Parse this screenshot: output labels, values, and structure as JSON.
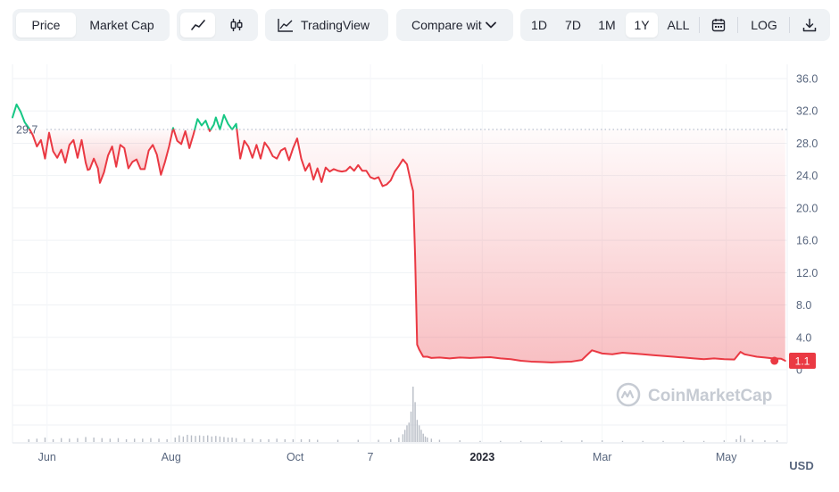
{
  "toolbar": {
    "metric_tabs": [
      {
        "label": "Price",
        "active": true
      },
      {
        "label": "Market Cap",
        "active": false
      }
    ],
    "chart_type_icons": [
      "line-chart-icon",
      "candlestick-icon"
    ],
    "tradingview_label": "TradingView",
    "compare_label": "Compare wit",
    "ranges": [
      {
        "label": "1D",
        "active": false
      },
      {
        "label": "7D",
        "active": false
      },
      {
        "label": "1M",
        "active": false
      },
      {
        "label": "1Y",
        "active": true
      },
      {
        "label": "ALL",
        "active": false
      }
    ],
    "calendar_icon": "calendar-icon",
    "log_label": "LOG",
    "download_icon": "download-icon"
  },
  "watermark": "CoinMarketCap",
  "currency_label": "USD",
  "colors": {
    "up": "#16c784",
    "down": "#ea3943",
    "grid": "#eff2f5",
    "axis_text": "#58667e",
    "badge_bg": "#ea3943"
  },
  "chart_data": {
    "type": "line",
    "reference_value": 29.7,
    "reference_label": "29.7",
    "last_value": 1.1,
    "last_label": "1.1",
    "ylim": [
      0,
      36
    ],
    "y_ticks": [
      {
        "value": 36,
        "label": "36.0"
      },
      {
        "value": 32,
        "label": "32.0"
      },
      {
        "value": 28,
        "label": "28.0"
      },
      {
        "value": 24,
        "label": "24.0"
      },
      {
        "value": 20,
        "label": "20.0"
      },
      {
        "value": 16,
        "label": "16.0"
      },
      {
        "value": 12,
        "label": "12.0"
      },
      {
        "value": 8,
        "label": "8.0"
      },
      {
        "value": 4,
        "label": "4.0"
      },
      {
        "value": 0,
        "label": "0"
      }
    ],
    "x_ticks": [
      {
        "day": 17,
        "label": "Jun",
        "bold": false
      },
      {
        "day": 78,
        "label": "Aug",
        "bold": false
      },
      {
        "day": 139,
        "label": "Oct",
        "bold": false
      },
      {
        "day": 176,
        "label": "7",
        "bold": false
      },
      {
        "day": 231,
        "label": "2023",
        "bold": true
      },
      {
        "day": 290,
        "label": "Mar",
        "bold": false
      },
      {
        "day": 351,
        "label": "May",
        "bold": false
      }
    ],
    "price_series": [
      [
        0,
        31.2
      ],
      [
        2,
        32.8
      ],
      [
        4,
        31.9
      ],
      [
        6,
        30.6
      ],
      [
        8,
        29.9
      ],
      [
        10,
        29.0
      ],
      [
        12,
        27.6
      ],
      [
        14,
        28.4
      ],
      [
        16,
        26.1
      ],
      [
        18,
        29.3
      ],
      [
        20,
        27.0
      ],
      [
        22,
        26.2
      ],
      [
        24,
        27.2
      ],
      [
        26,
        25.6
      ],
      [
        28,
        27.8
      ],
      [
        30,
        28.4
      ],
      [
        32,
        26.2
      ],
      [
        34,
        28.4
      ],
      [
        36,
        25.6
      ],
      [
        37,
        24.7
      ],
      [
        38,
        24.8
      ],
      [
        40,
        26.1
      ],
      [
        42,
        24.9
      ],
      [
        43,
        23.1
      ],
      [
        45,
        24.4
      ],
      [
        47,
        26.5
      ],
      [
        49,
        27.6
      ],
      [
        51,
        25.1
      ],
      [
        53,
        27.8
      ],
      [
        55,
        27.4
      ],
      [
        57,
        24.9
      ],
      [
        59,
        25.7
      ],
      [
        61,
        26.0
      ],
      [
        63,
        24.8
      ],
      [
        65,
        24.8
      ],
      [
        67,
        27.1
      ],
      [
        69,
        27.8
      ],
      [
        71,
        26.6
      ],
      [
        73,
        24.1
      ],
      [
        75,
        25.7
      ],
      [
        77,
        27.6
      ],
      [
        79,
        29.9
      ],
      [
        81,
        28.3
      ],
      [
        83,
        27.9
      ],
      [
        85,
        29.5
      ],
      [
        87,
        27.4
      ],
      [
        89,
        29.1
      ],
      [
        91,
        31.0
      ],
      [
        93,
        30.2
      ],
      [
        95,
        30.8
      ],
      [
        97,
        29.5
      ],
      [
        99,
        30.3
      ],
      [
        100,
        31.2
      ],
      [
        102,
        29.7
      ],
      [
        104,
        31.5
      ],
      [
        106,
        30.4
      ],
      [
        108,
        29.7
      ],
      [
        110,
        30.4
      ],
      [
        112,
        26.1
      ],
      [
        114,
        28.3
      ],
      [
        116,
        27.6
      ],
      [
        118,
        26.2
      ],
      [
        120,
        27.8
      ],
      [
        122,
        26.1
      ],
      [
        124,
        28.1
      ],
      [
        126,
        27.4
      ],
      [
        128,
        26.4
      ],
      [
        130,
        26.1
      ],
      [
        132,
        27.1
      ],
      [
        134,
        27.4
      ],
      [
        136,
        25.9
      ],
      [
        138,
        27.4
      ],
      [
        140,
        28.6
      ],
      [
        142,
        26.1
      ],
      [
        144,
        24.6
      ],
      [
        146,
        25.5
      ],
      [
        148,
        23.5
      ],
      [
        150,
        24.9
      ],
      [
        152,
        23.2
      ],
      [
        154,
        25.0
      ],
      [
        156,
        24.5
      ],
      [
        158,
        24.8
      ],
      [
        160,
        24.6
      ],
      [
        162,
        24.5
      ],
      [
        164,
        24.6
      ],
      [
        166,
        25.1
      ],
      [
        168,
        24.6
      ],
      [
        170,
        25.3
      ],
      [
        172,
        24.6
      ],
      [
        174,
        24.6
      ],
      [
        176,
        23.8
      ],
      [
        178,
        23.6
      ],
      [
        180,
        23.8
      ],
      [
        182,
        22.7
      ],
      [
        184,
        22.9
      ],
      [
        186,
        23.4
      ],
      [
        188,
        24.5
      ],
      [
        190,
        25.2
      ],
      [
        192,
        26.0
      ],
      [
        194,
        25.4
      ],
      [
        196,
        23.1
      ],
      [
        197,
        22.1
      ],
      [
        198,
        14.0
      ],
      [
        199,
        3.1
      ],
      [
        200,
        2.5
      ],
      [
        202,
        1.6
      ],
      [
        204,
        1.6
      ],
      [
        206,
        1.45
      ],
      [
        210,
        1.5
      ],
      [
        215,
        1.4
      ],
      [
        220,
        1.5
      ],
      [
        225,
        1.45
      ],
      [
        230,
        1.5
      ],
      [
        235,
        1.55
      ],
      [
        240,
        1.4
      ],
      [
        245,
        1.3
      ],
      [
        250,
        1.1
      ],
      [
        255,
        1.0
      ],
      [
        260,
        0.95
      ],
      [
        265,
        0.9
      ],
      [
        270,
        0.95
      ],
      [
        275,
        1.0
      ],
      [
        280,
        1.2
      ],
      [
        285,
        2.4
      ],
      [
        290,
        2.0
      ],
      [
        295,
        1.9
      ],
      [
        300,
        2.1
      ],
      [
        305,
        2.0
      ],
      [
        310,
        1.9
      ],
      [
        315,
        1.8
      ],
      [
        320,
        1.7
      ],
      [
        325,
        1.6
      ],
      [
        330,
        1.5
      ],
      [
        335,
        1.4
      ],
      [
        340,
        1.3
      ],
      [
        345,
        1.4
      ],
      [
        350,
        1.3
      ],
      [
        355,
        1.25
      ],
      [
        358,
        2.2
      ],
      [
        360,
        1.9
      ],
      [
        362,
        1.8
      ],
      [
        366,
        1.6
      ],
      [
        370,
        1.5
      ],
      [
        374,
        1.4
      ],
      [
        378,
        1.35
      ],
      [
        380,
        1.1
      ]
    ],
    "volume_series": [
      [
        8,
        0.05
      ],
      [
        12,
        0.06
      ],
      [
        16,
        0.08
      ],
      [
        20,
        0.05
      ],
      [
        24,
        0.07
      ],
      [
        28,
        0.06
      ],
      [
        32,
        0.07
      ],
      [
        36,
        0.09
      ],
      [
        40,
        0.08
      ],
      [
        44,
        0.07
      ],
      [
        48,
        0.06
      ],
      [
        52,
        0.07
      ],
      [
        56,
        0.05
      ],
      [
        60,
        0.06
      ],
      [
        64,
        0.06
      ],
      [
        68,
        0.07
      ],
      [
        72,
        0.06
      ],
      [
        76,
        0.05
      ],
      [
        80,
        0.08
      ],
      [
        82,
        0.12
      ],
      [
        84,
        0.1
      ],
      [
        86,
        0.13
      ],
      [
        88,
        0.12
      ],
      [
        90,
        0.11
      ],
      [
        92,
        0.12
      ],
      [
        94,
        0.11
      ],
      [
        96,
        0.12
      ],
      [
        98,
        0.1
      ],
      [
        100,
        0.11
      ],
      [
        102,
        0.1
      ],
      [
        104,
        0.09
      ],
      [
        106,
        0.08
      ],
      [
        108,
        0.08
      ],
      [
        110,
        0.07
      ],
      [
        114,
        0.06
      ],
      [
        118,
        0.06
      ],
      [
        122,
        0.05
      ],
      [
        126,
        0.05
      ],
      [
        130,
        0.06
      ],
      [
        134,
        0.05
      ],
      [
        138,
        0.05
      ],
      [
        142,
        0.05
      ],
      [
        146,
        0.05
      ],
      [
        150,
        0.04
      ],
      [
        160,
        0.04
      ],
      [
        170,
        0.04
      ],
      [
        180,
        0.04
      ],
      [
        186,
        0.05
      ],
      [
        190,
        0.08
      ],
      [
        192,
        0.14
      ],
      [
        193,
        0.22
      ],
      [
        194,
        0.3
      ],
      [
        195,
        0.35
      ],
      [
        196,
        0.55
      ],
      [
        197,
        1.0
      ],
      [
        198,
        0.72
      ],
      [
        199,
        0.4
      ],
      [
        200,
        0.3
      ],
      [
        201,
        0.22
      ],
      [
        202,
        0.15
      ],
      [
        203,
        0.1
      ],
      [
        204,
        0.08
      ],
      [
        206,
        0.06
      ],
      [
        210,
        0.04
      ],
      [
        220,
        0.03
      ],
      [
        230,
        0.02
      ],
      [
        240,
        0.02
      ],
      [
        250,
        0.02
      ],
      [
        260,
        0.02
      ],
      [
        270,
        0.02
      ],
      [
        280,
        0.03
      ],
      [
        290,
        0.03
      ],
      [
        300,
        0.02
      ],
      [
        310,
        0.02
      ],
      [
        320,
        0.02
      ],
      [
        330,
        0.02
      ],
      [
        340,
        0.02
      ],
      [
        350,
        0.03
      ],
      [
        356,
        0.05
      ],
      [
        358,
        0.12
      ],
      [
        360,
        0.06
      ],
      [
        364,
        0.04
      ],
      [
        370,
        0.03
      ],
      [
        376,
        0.03
      ]
    ]
  }
}
